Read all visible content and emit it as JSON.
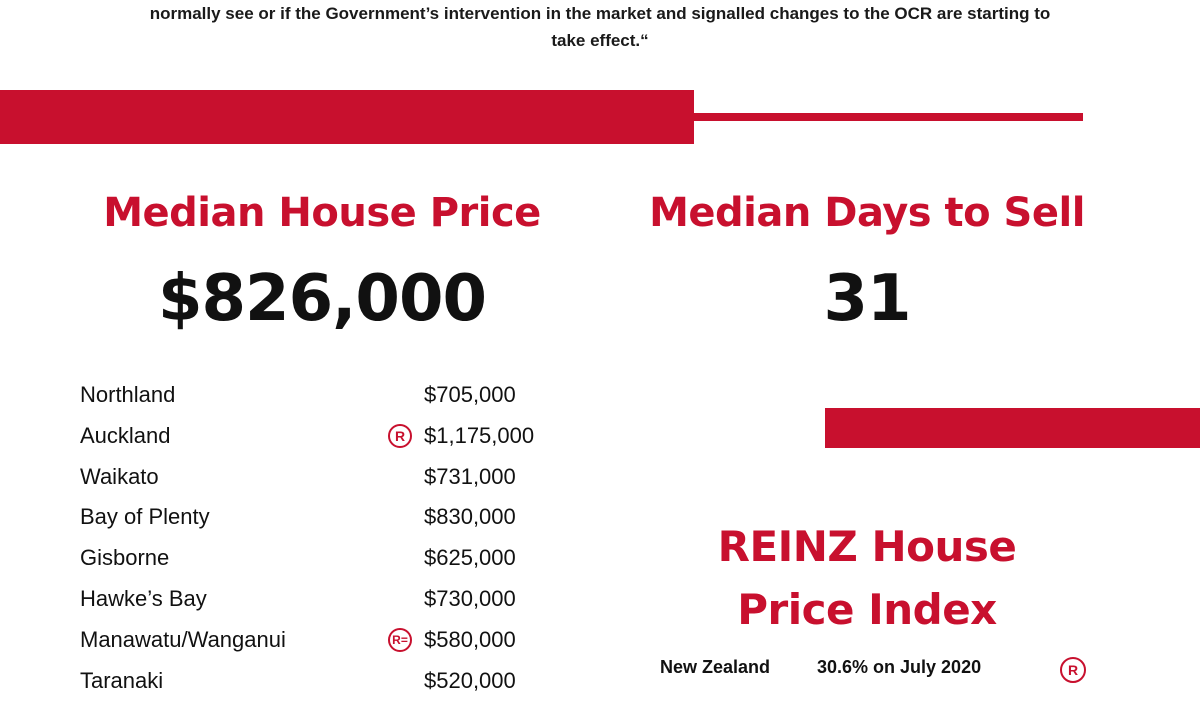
{
  "quote": {
    "line1": "normally see or if the Government’s intervention in the market and signalled changes to the OCR are starting to",
    "line2": "take effect.“"
  },
  "colors": {
    "accent": "#c8102e",
    "text": "#111111"
  },
  "median_price": {
    "heading": "Median House Price",
    "value": "$826,000"
  },
  "median_days": {
    "heading": "Median Days to Sell",
    "value": "31"
  },
  "regions": [
    {
      "name": "Northland",
      "value": "$705,000",
      "badge": ""
    },
    {
      "name": "Auckland",
      "value": "$1,175,000",
      "badge": "R"
    },
    {
      "name": "Waikato",
      "value": "$731,000",
      "badge": ""
    },
    {
      "name": "Bay of Plenty",
      "value": "$830,000",
      "badge": ""
    },
    {
      "name": "Gisborne",
      "value": "$625,000",
      "badge": ""
    },
    {
      "name": "Hawke’s Bay",
      "value": "$730,000",
      "badge": ""
    },
    {
      "name": "Manawatu/Wanganui",
      "value": "$580,000",
      "badge": "R="
    },
    {
      "name": "Taranaki",
      "value": "$520,000",
      "badge": ""
    }
  ],
  "hpi": {
    "heading_line1": "REINZ House",
    "heading_line2": "Price Index",
    "row": {
      "label": "New Zealand",
      "value": "30.6% on July 2020",
      "badge": "R"
    }
  }
}
